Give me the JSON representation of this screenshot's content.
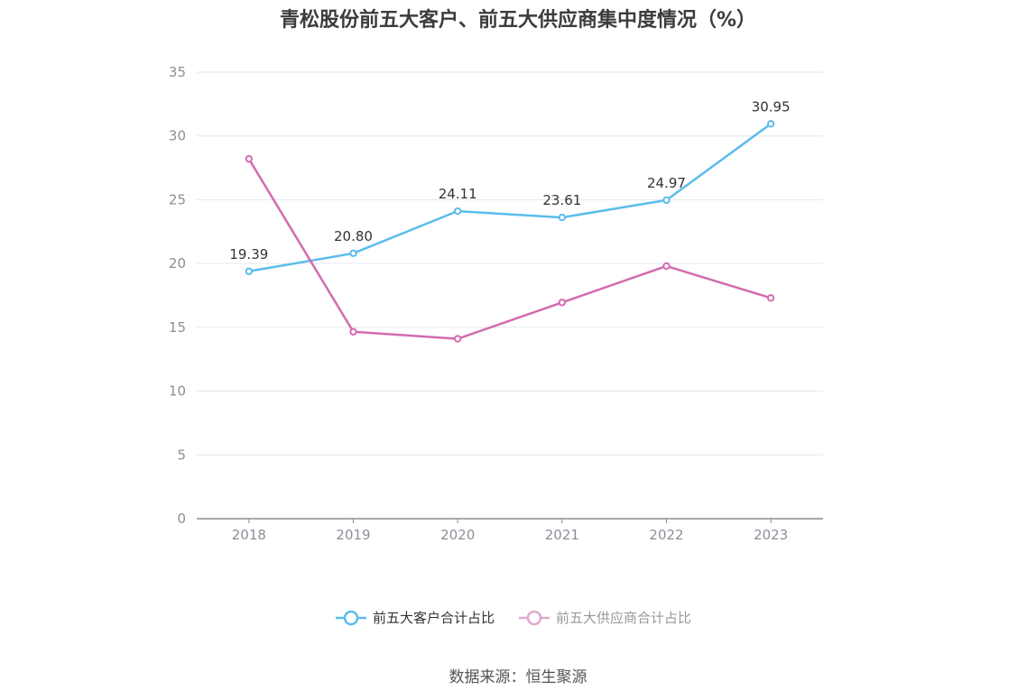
{
  "chart_data": {
    "type": "line",
    "title": "青松股份前五大客户、前五大供应商集中度情况（%）",
    "source": "数据来源：恒生聚源",
    "categories": [
      "2018",
      "2019",
      "2020",
      "2021",
      "2022",
      "2023"
    ],
    "ylim": [
      0,
      35
    ],
    "yticks": [
      "0",
      "5",
      "10",
      "15",
      "20",
      "25",
      "30",
      "35"
    ],
    "grid": true,
    "legend_position": "bottom",
    "series": [
      {
        "name": "前五大客户合计占比",
        "color": "#5bbcec",
        "values": [
          19.39,
          20.8,
          24.11,
          23.61,
          24.97,
          30.95
        ],
        "labels": [
          "19.39",
          "20.80",
          "24.11",
          "23.61",
          "24.97",
          "30.95"
        ]
      },
      {
        "name": "前五大供应商合计占比",
        "color": "#d36bb0",
        "values": [
          28.2,
          14.65,
          14.1,
          16.95,
          19.8,
          17.3
        ],
        "labels": []
      }
    ]
  }
}
